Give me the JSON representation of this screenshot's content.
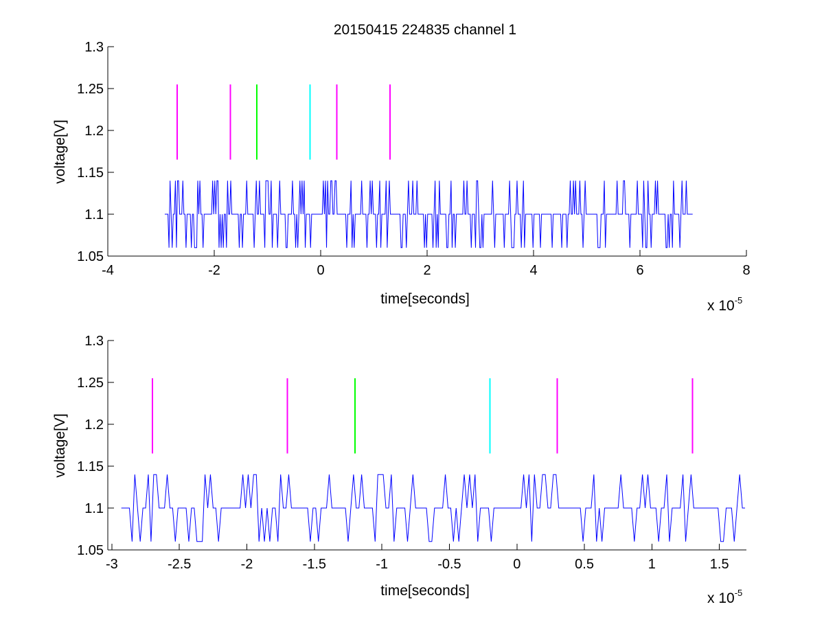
{
  "figure": {
    "title": "20150415 224835 channel 1"
  },
  "colors": {
    "trace": "#0000ff",
    "magenta": "#ff00ff",
    "green": "#00ff00",
    "cyan": "#00ffff"
  },
  "chart_data": [
    {
      "type": "line",
      "title": "20150415 224835 channel 1",
      "xlabel": "time[seconds]",
      "ylabel": "voltage[V]",
      "x_multiplier": {
        "base": "x 10",
        "exponent": "-5"
      },
      "xlim": [
        -4,
        8
      ],
      "ylim": [
        1.05,
        1.3
      ],
      "xticks": [
        -4,
        -2,
        0,
        2,
        4,
        6,
        8
      ],
      "xtick_labels": [
        "-4",
        "-2",
        "0",
        "2",
        "4",
        "6",
        "8"
      ],
      "yticks": [
        1.05,
        1.1,
        1.15,
        1.2,
        1.25,
        1.3
      ],
      "ytick_labels": [
        "1.05",
        "1.1",
        "1.15",
        "1.2",
        "1.25",
        "1.3"
      ],
      "grid": false,
      "series": [
        {
          "kind": "quantized-noise",
          "color": "#0000ff",
          "x_range": [
            -2.93,
            7.0
          ],
          "levels": [
            1.06,
            1.1,
            1.14
          ],
          "baseline": 1.1
        }
      ],
      "markers": [
        {
          "x": -2.7,
          "y": [
            1.165,
            1.255
          ],
          "color": "#ff00ff"
        },
        {
          "x": -1.7,
          "y": [
            1.165,
            1.255
          ],
          "color": "#ff00ff"
        },
        {
          "x": -1.2,
          "y": [
            1.165,
            1.255
          ],
          "color": "#00ff00"
        },
        {
          "x": -0.2,
          "y": [
            1.165,
            1.255
          ],
          "color": "#00ffff"
        },
        {
          "x": 0.3,
          "y": [
            1.165,
            1.255
          ],
          "color": "#ff00ff"
        },
        {
          "x": 1.3,
          "y": [
            1.165,
            1.255
          ],
          "color": "#ff00ff"
        }
      ]
    },
    {
      "type": "line",
      "xlabel": "time[seconds]",
      "ylabel": "voltage[V]",
      "x_multiplier": {
        "base": "x 10",
        "exponent": "-5"
      },
      "xlim": [
        -3.03,
        1.7
      ],
      "ylim": [
        1.05,
        1.3
      ],
      "xticks": [
        -3,
        -2.5,
        -2,
        -1.5,
        -1,
        -0.5,
        0,
        0.5,
        1,
        1.5
      ],
      "xtick_labels": [
        "-3",
        "-2.5",
        "-2",
        "-1.5",
        "-1",
        "-0.5",
        "0",
        "0.5",
        "1",
        "1.5"
      ],
      "yticks": [
        1.05,
        1.1,
        1.15,
        1.2,
        1.25,
        1.3
      ],
      "ytick_labels": [
        "1.05",
        "1.1",
        "1.15",
        "1.2",
        "1.25",
        "1.3"
      ],
      "grid": false,
      "series": [
        {
          "kind": "quantized-noise",
          "color": "#0000ff",
          "x_range": [
            -2.93,
            1.7
          ],
          "levels": [
            1.06,
            1.1,
            1.14
          ],
          "baseline": 1.1
        }
      ],
      "markers": [
        {
          "x": -2.7,
          "y": [
            1.165,
            1.255
          ],
          "color": "#ff00ff"
        },
        {
          "x": -1.7,
          "y": [
            1.165,
            1.255
          ],
          "color": "#ff00ff"
        },
        {
          "x": -1.2,
          "y": [
            1.165,
            1.255
          ],
          "color": "#00ff00"
        },
        {
          "x": -0.2,
          "y": [
            1.165,
            1.255
          ],
          "color": "#00ffff"
        },
        {
          "x": 0.3,
          "y": [
            1.165,
            1.255
          ],
          "color": "#ff00ff"
        },
        {
          "x": 1.3,
          "y": [
            1.165,
            1.255
          ],
          "color": "#ff00ff"
        }
      ]
    }
  ]
}
